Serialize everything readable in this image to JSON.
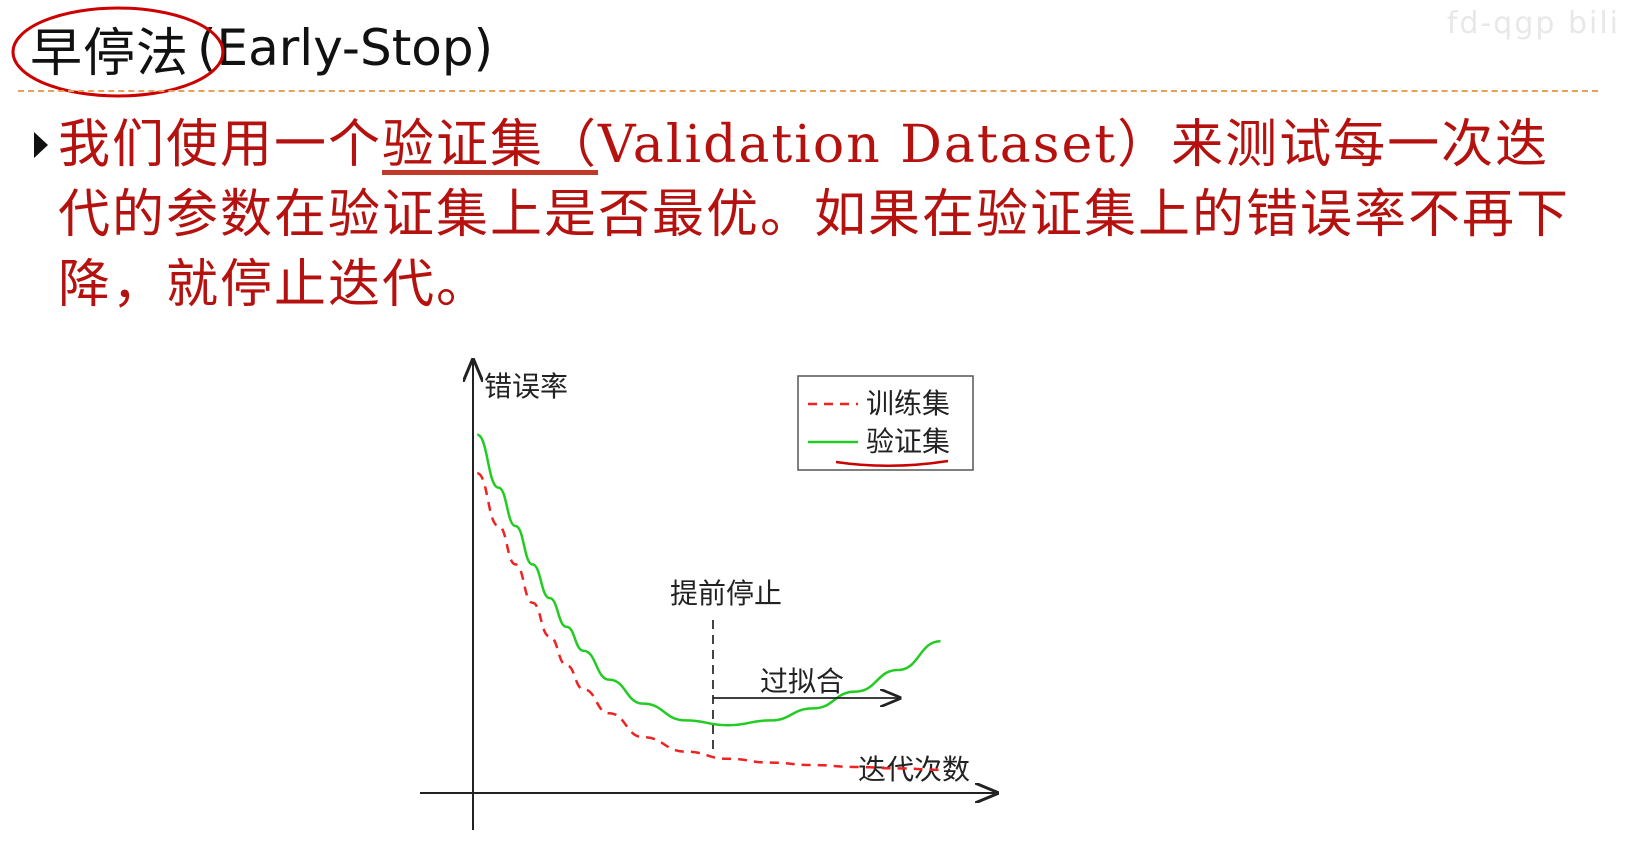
{
  "slide": {
    "title_cn": "早停法",
    "title_en": "(Early-Stop)",
    "watermark": "fd-qgp bili"
  },
  "bullet": {
    "text_part1": "我们使用一个",
    "text_highlight": "验证集（",
    "text_part2": "Validation Dataset）来测试每一次迭代的参数在验证集上是否最优。如果在验证集上的错误率不再下降，就停止迭代。"
  },
  "figure": {
    "ylabel": "错误率",
    "xlabel": "迭代次数",
    "stop_label": "提前停止",
    "overfit_label": "过拟合",
    "legend": {
      "train": "训练集",
      "val": "验证集"
    },
    "colors": {
      "train": "#ee2222",
      "val": "#22cc22",
      "annotation": "#cc0000"
    }
  },
  "chart_data": {
    "type": "line",
    "xlabel": "迭代次数",
    "ylabel": "错误率",
    "series": [
      {
        "name": "训练集",
        "x": [
          0.05,
          0.3,
          0.5,
          0.7,
          0.9,
          1.1,
          1.3,
          1.6,
          2.0,
          2.5,
          3.0,
          3.5,
          4.0,
          4.5,
          5.0,
          5.5
        ],
        "y": [
          6.6,
          5.5,
          4.7,
          3.9,
          3.2,
          2.6,
          2.1,
          1.6,
          1.1,
          0.8,
          0.65,
          0.57,
          0.52,
          0.48,
          0.45,
          0.42
        ],
        "style": "dashed"
      },
      {
        "name": "验证集",
        "x": [
          0.05,
          0.3,
          0.5,
          0.7,
          0.9,
          1.1,
          1.3,
          1.6,
          2.0,
          2.5,
          3.0,
          3.5,
          4.0,
          4.5,
          5.0,
          5.5
        ],
        "y": [
          7.4,
          6.3,
          5.5,
          4.7,
          4.0,
          3.4,
          2.9,
          2.3,
          1.8,
          1.45,
          1.35,
          1.45,
          1.7,
          2.05,
          2.5,
          3.1
        ],
        "style": "solid"
      }
    ],
    "annotations": [
      {
        "label": "提前停止",
        "x": 2.7
      },
      {
        "label": "过拟合",
        "x_from": 2.7,
        "x_to": 4.8
      }
    ]
  }
}
